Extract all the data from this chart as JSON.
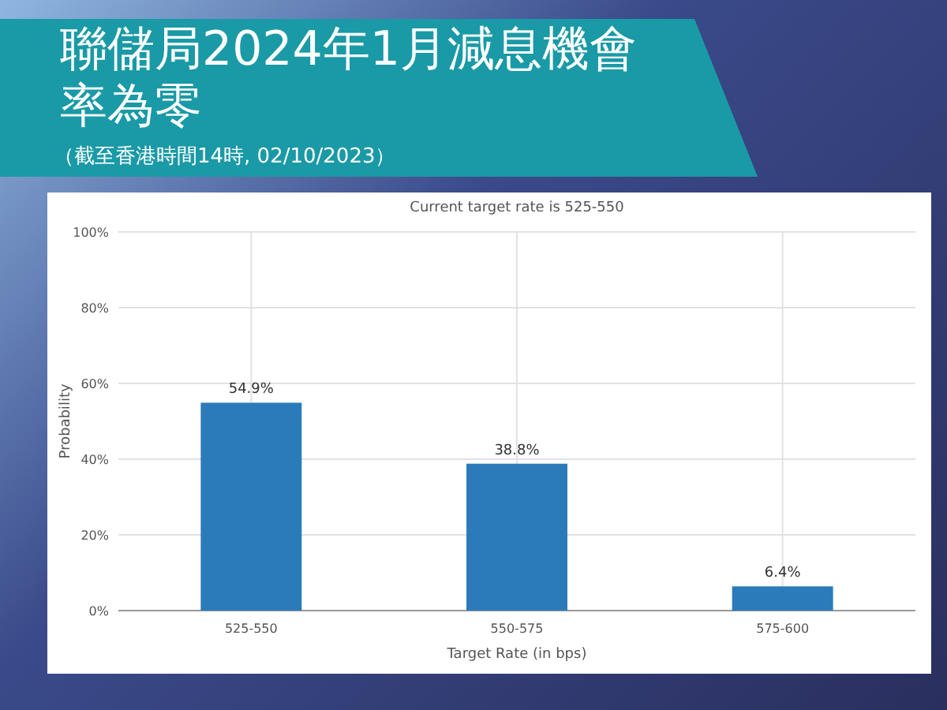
{
  "chart_data": {
    "type": "bar",
    "title": "聯儲局2024年1月減息機會率為零",
    "subtitle": "（截至香港時間14時, 02/10/2023）",
    "annotations": [
      "Current target rate is 525-550"
    ],
    "xlabel": "Target Rate (in bps)",
    "ylabel": "Probability",
    "categories": [
      "525-550",
      "550-575",
      "575-600"
    ],
    "values": [
      54.9,
      38.8,
      6.4
    ],
    "color": "#2b7bba",
    "value_labels": [
      "54.9%",
      "38.8%",
      "6.4%"
    ],
    "ylim": [
      0,
      100
    ],
    "yticks": [
      {
        "value": 0,
        "label": "0%"
      },
      {
        "value": 20,
        "label": "20%"
      },
      {
        "value": 40,
        "label": "40%"
      },
      {
        "value": 60,
        "label": "60%"
      },
      {
        "value": 80,
        "label": "80%"
      },
      {
        "value": 100,
        "label": "100%"
      }
    ],
    "grid": true
  }
}
